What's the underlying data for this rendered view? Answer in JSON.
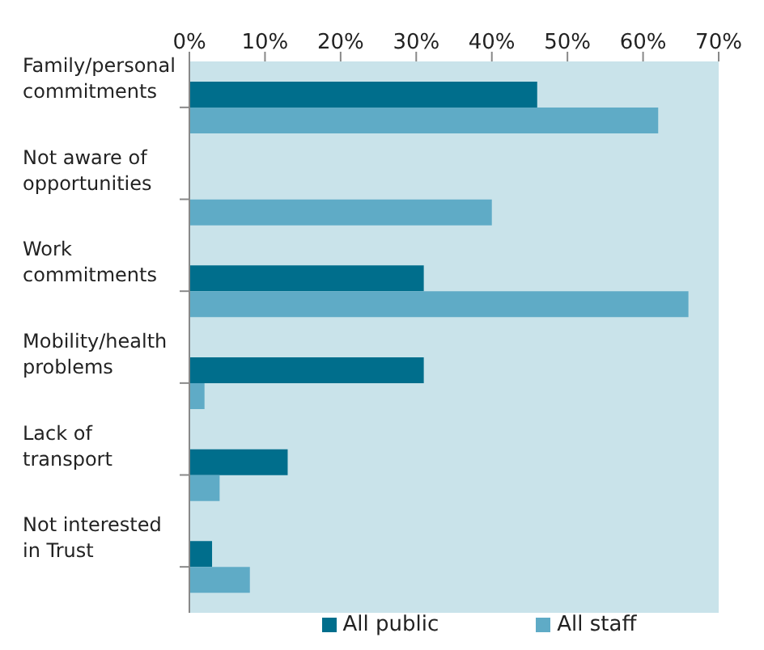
{
  "chart_data": {
    "type": "bar",
    "orientation": "horizontal",
    "categories": [
      "Family/personal commitments",
      "Not aware of opportunities",
      "Work commitments",
      "Mobility/health problems",
      "Lack of transport",
      "Not interested in Trust"
    ],
    "series": [
      {
        "name": "All public",
        "color": "#006e8c",
        "values": [
          46,
          null,
          31,
          31,
          13,
          3
        ]
      },
      {
        "name": "All staff",
        "color": "#5fabc6",
        "values": [
          62,
          40,
          66,
          2,
          4,
          8
        ]
      }
    ],
    "xlim": [
      0,
      70
    ],
    "xticks": [
      {
        "value": 0,
        "label": "0%"
      },
      {
        "value": 10,
        "label": "10%"
      },
      {
        "value": 20,
        "label": "20%"
      },
      {
        "value": 30,
        "label": "30%"
      },
      {
        "value": 40,
        "label": "40%"
      },
      {
        "value": 50,
        "label": "50%"
      },
      {
        "value": 60,
        "label": "60%"
      },
      {
        "value": 70,
        "label": "70%"
      }
    ],
    "grid": false,
    "legend": "bottom"
  }
}
